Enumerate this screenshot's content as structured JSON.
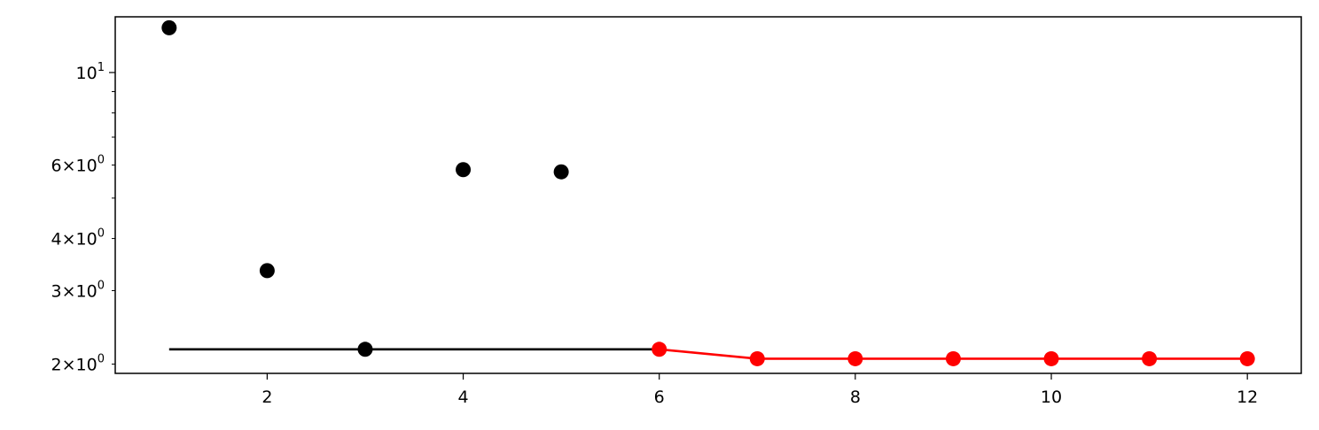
{
  "chart_data": {
    "type": "scatter",
    "title": "",
    "xlabel": "",
    "ylabel": "",
    "xlim": [
      0.45,
      12.55
    ],
    "ylim": [
      1.9,
      13.6
    ],
    "yscale": "log",
    "grid": false,
    "x_ticks": [
      {
        "value": 2,
        "label": "2"
      },
      {
        "value": 4,
        "label": "4"
      },
      {
        "value": 6,
        "label": "6"
      },
      {
        "value": 8,
        "label": "8"
      },
      {
        "value": 10,
        "label": "10"
      },
      {
        "value": 12,
        "label": "12"
      }
    ],
    "y_major_ticks": [
      {
        "value": 10,
        "base": "10",
        "exponent": "1"
      }
    ],
    "y_minor_labeled_ticks": [
      {
        "value": 2,
        "mantissa": "2",
        "base": "10",
        "exponent": "0"
      },
      {
        "value": 3,
        "mantissa": "3",
        "base": "10",
        "exponent": "0"
      },
      {
        "value": 4,
        "mantissa": "4",
        "base": "10",
        "exponent": "0"
      },
      {
        "value": 6,
        "mantissa": "6",
        "base": "10",
        "exponent": "0"
      }
    ],
    "y_minor_unlabeled_ticks": [
      5,
      7,
      8,
      9
    ],
    "series": [
      {
        "kind": "points",
        "color": "#000000",
        "x": [
          1,
          2,
          3,
          4,
          5
        ],
        "y": [
          12.8,
          3.35,
          2.17,
          5.85,
          5.78
        ]
      },
      {
        "kind": "hline",
        "color": "#000000",
        "x": [
          1,
          6
        ],
        "y": [
          2.17,
          2.17
        ]
      },
      {
        "kind": "line-with-points",
        "color": "#ff0000",
        "x": [
          6,
          7,
          8,
          9,
          10,
          11,
          12
        ],
        "y": [
          2.17,
          2.06,
          2.06,
          2.06,
          2.06,
          2.06,
          2.06
        ]
      }
    ]
  }
}
